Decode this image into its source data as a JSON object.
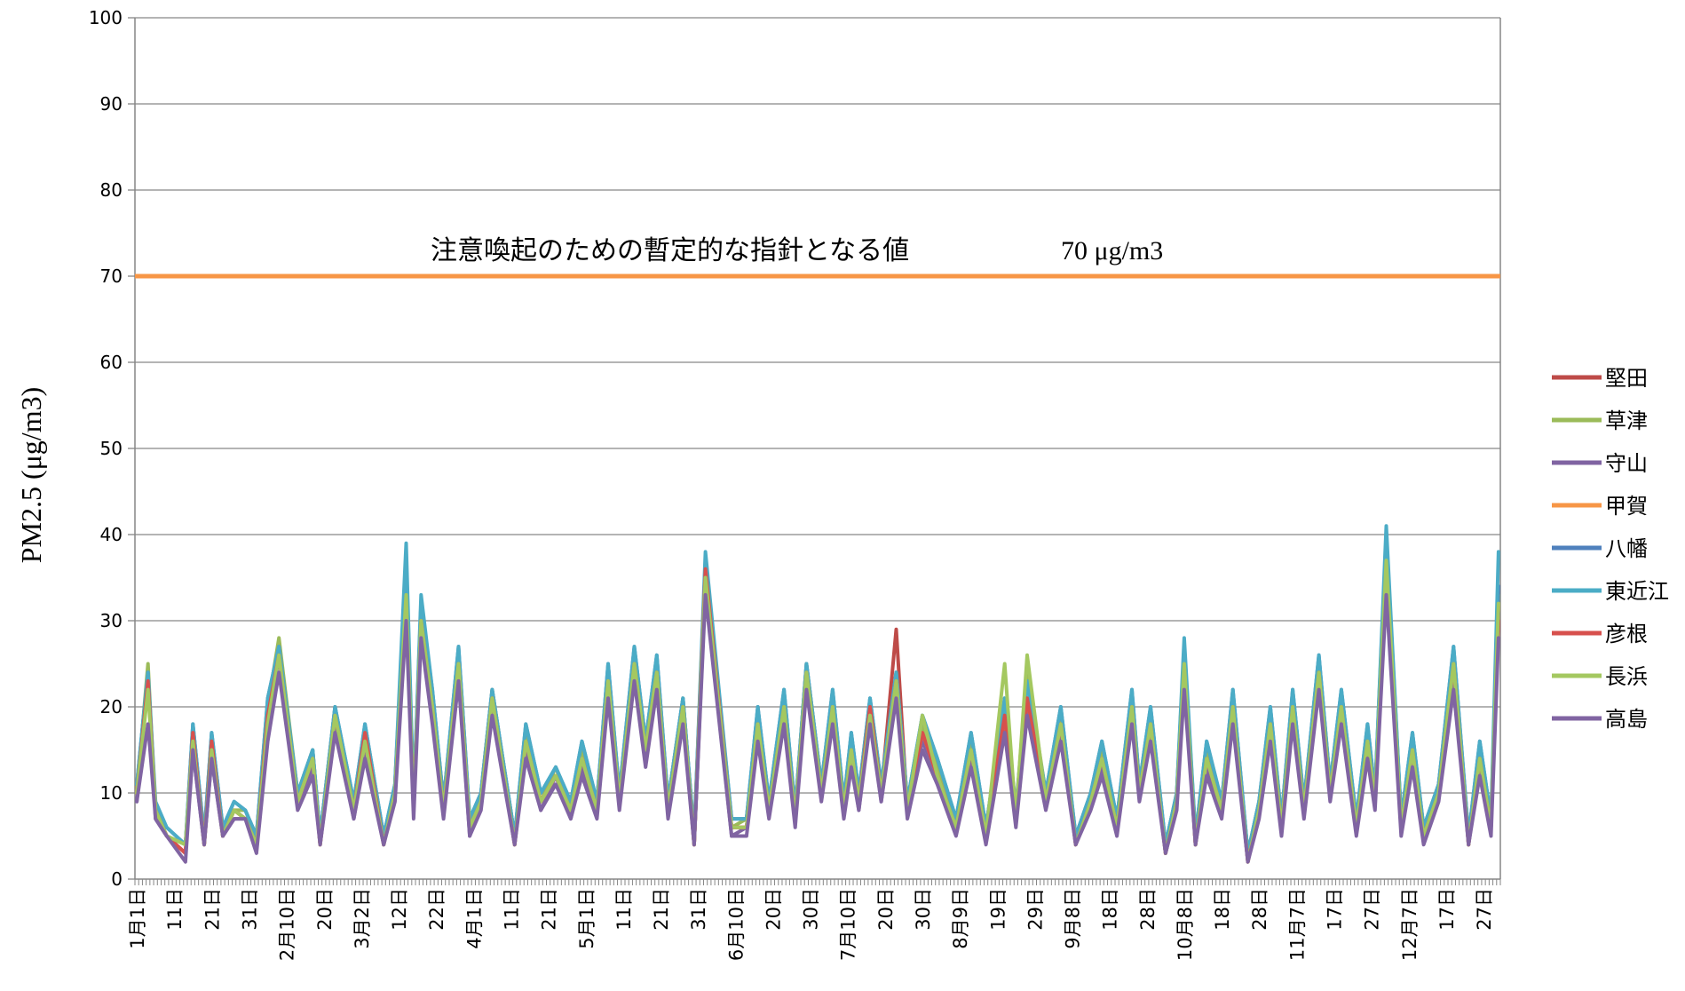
{
  "chart_data": {
    "type": "line",
    "ylabel": "PM2.5 (μg/m3)",
    "ylim": [
      0,
      100
    ],
    "yticks": [
      0,
      10,
      20,
      30,
      40,
      50,
      60,
      70,
      80,
      90,
      100
    ],
    "grid": true,
    "legend_position": "right",
    "x_tick_labels": [
      {
        "day": 0,
        "label": "1月1日"
      },
      {
        "day": 10,
        "label": "11日"
      },
      {
        "day": 20,
        "label": "21日"
      },
      {
        "day": 30,
        "label": "31日"
      },
      {
        "day": 40,
        "label": "2月10日"
      },
      {
        "day": 50,
        "label": "20日"
      },
      {
        "day": 60,
        "label": "3月2日"
      },
      {
        "day": 70,
        "label": "12日"
      },
      {
        "day": 80,
        "label": "22日"
      },
      {
        "day": 90,
        "label": "4月1日"
      },
      {
        "day": 100,
        "label": "11日"
      },
      {
        "day": 110,
        "label": "21日"
      },
      {
        "day": 120,
        "label": "5月1日"
      },
      {
        "day": 130,
        "label": "11日"
      },
      {
        "day": 140,
        "label": "21日"
      },
      {
        "day": 150,
        "label": "31日"
      },
      {
        "day": 160,
        "label": "6月10日"
      },
      {
        "day": 170,
        "label": "20日"
      },
      {
        "day": 180,
        "label": "30日"
      },
      {
        "day": 190,
        "label": "7月10日"
      },
      {
        "day": 200,
        "label": "20日"
      },
      {
        "day": 210,
        "label": "30日"
      },
      {
        "day": 220,
        "label": "8月9日"
      },
      {
        "day": 230,
        "label": "19日"
      },
      {
        "day": 240,
        "label": "29日"
      },
      {
        "day": 250,
        "label": "9月8日"
      },
      {
        "day": 260,
        "label": "18日"
      },
      {
        "day": 270,
        "label": "28日"
      },
      {
        "day": 280,
        "label": "10月8日"
      },
      {
        "day": 290,
        "label": "18日"
      },
      {
        "day": 300,
        "label": "28日"
      },
      {
        "day": 310,
        "label": "11月7日"
      },
      {
        "day": 320,
        "label": "17日"
      },
      {
        "day": 330,
        "label": "27日"
      },
      {
        "day": 340,
        "label": "12月7日"
      },
      {
        "day": 350,
        "label": "17日"
      },
      {
        "day": 360,
        "label": "27日"
      }
    ],
    "x_days": 365,
    "reference_line": {
      "value": 70,
      "label": "注意喚起のための暫定的な指針となる値",
      "unit_label": "70 μg/m3",
      "color": "#F79646"
    },
    "series_key_days": [
      0,
      3,
      5,
      8,
      13,
      15,
      18,
      20,
      23,
      26,
      29,
      32,
      35,
      38,
      43,
      47,
      49,
      53,
      58,
      61,
      66,
      69,
      72,
      74,
      76,
      79,
      82,
      86,
      89,
      92,
      95,
      101,
      104,
      108,
      112,
      116,
      119,
      123,
      126,
      129,
      133,
      136,
      139,
      142,
      146,
      149,
      152,
      159,
      163,
      166,
      169,
      173,
      176,
      179,
      183,
      186,
      189,
      191,
      193,
      196,
      199,
      203,
      206,
      210,
      214,
      219,
      223,
      227,
      232,
      235,
      238,
      243,
      247,
      251,
      255,
      258,
      262,
      266,
      268,
      271,
      275,
      278,
      280,
      283,
      286,
      290,
      293,
      297,
      300,
      303,
      306,
      309,
      312,
      316,
      319,
      322,
      326,
      329,
      331,
      334,
      338,
      341,
      344,
      348,
      352,
      356,
      359,
      362,
      364
    ],
    "series": [
      {
        "name": "堅田",
        "color": "#BE4B48",
        "values": [
          10,
          24,
          8,
          5,
          3,
          16,
          4,
          15,
          5,
          8,
          7,
          4,
          18,
          27,
          9,
          14,
          4,
          19,
          8,
          16,
          4,
          10,
          34,
          8,
          31,
          20,
          8,
          25,
          6,
          9,
          21,
          4,
          16,
          9,
          12,
          8,
          14,
          8,
          23,
          9,
          25,
          15,
          24,
          8,
          20,
          4,
          35,
          6,
          6,
          18,
          8,
          20,
          7,
          24,
          10,
          20,
          8,
          15,
          9,
          20,
          10,
          29,
          8,
          17,
          12,
          6,
          15,
          5,
          19,
          7,
          21,
          9,
          18,
          4,
          9,
          14,
          6,
          20,
          10,
          18,
          3,
          9,
          25,
          4,
          14,
          8,
          20,
          2,
          8,
          18,
          6,
          20,
          8,
          24,
          10,
          20,
          6,
          16,
          9,
          38,
          6,
          15,
          5,
          10,
          25,
          4,
          14,
          6,
          32,
          3,
          10,
          10,
          6
        ]
      },
      {
        "name": "草津",
        "color": "#9BBB59",
        "values": [
          10,
          25,
          8,
          5,
          4,
          17,
          4,
          16,
          5,
          8,
          8,
          5,
          20,
          28,
          10,
          15,
          5,
          20,
          8,
          17,
          4,
          11,
          35,
          9,
          32,
          21,
          9,
          26,
          6,
          10,
          22,
          5,
          17,
          9,
          13,
          8,
          15,
          9,
          24,
          10,
          26,
          16,
          25,
          9,
          21,
          5,
          36,
          6,
          7,
          19,
          9,
          21,
          8,
          25,
          11,
          21,
          9,
          16,
          9,
          20,
          10,
          24,
          9,
          18,
          13,
          7,
          16,
          6,
          20,
          8,
          24,
          10,
          19,
          5,
          10,
          15,
          7,
          21,
          11,
          19,
          4,
          10,
          26,
          5,
          15,
          9,
          21,
          3,
          9,
          19,
          7,
          21,
          9,
          25,
          11,
          21,
          7,
          17,
          10,
          39,
          7,
          16,
          6,
          11,
          26,
          5,
          15,
          7,
          33,
          4,
          11,
          11,
          7
        ]
      },
      {
        "name": "守山",
        "color": "#8064A2",
        "values": [
          9,
          23,
          7,
          5,
          3,
          15,
          4,
          14,
          5,
          7,
          7,
          4,
          17,
          26,
          9,
          13,
          4,
          18,
          7,
          15,
          4,
          10,
          33,
          8,
          30,
          19,
          8,
          24,
          5,
          9,
          20,
          4,
          15,
          8,
          12,
          7,
          13,
          8,
          22,
          9,
          24,
          14,
          23,
          8,
          19,
          4,
          34,
          5,
          6,
          17,
          8,
          19,
          7,
          23,
          10,
          19,
          8,
          14,
          8,
          19,
          9,
          22,
          8,
          16,
          12,
          6,
          14,
          5,
          18,
          7,
          20,
          9,
          17,
          4,
          9,
          13,
          6,
          19,
          10,
          17,
          3,
          9,
          24,
          4,
          13,
          8,
          19,
          2,
          8,
          17,
          6,
          19,
          8,
          23,
          10,
          19,
          6,
          15,
          9,
          36,
          6,
          14,
          5,
          10,
          24,
          4,
          13,
          6,
          31,
          3,
          10,
          10,
          6
        ]
      },
      {
        "name": "甲賀",
        "color": "#F79646",
        "values": [
          10,
          24,
          8,
          5,
          3,
          16,
          4,
          15,
          5,
          8,
          7,
          4,
          18,
          27,
          9,
          14,
          4,
          19,
          8,
          16,
          4,
          10,
          34,
          8,
          31,
          20,
          8,
          25,
          6,
          9,
          21,
          4,
          16,
          9,
          12,
          8,
          14,
          8,
          23,
          9,
          25,
          15,
          24,
          8,
          20,
          4,
          35,
          6,
          6,
          18,
          8,
          20,
          7,
          24,
          10,
          20,
          8,
          15,
          9,
          20,
          10,
          23,
          8,
          17,
          12,
          6,
          15,
          5,
          19,
          7,
          21,
          9,
          18,
          4,
          9,
          14,
          6,
          20,
          10,
          18,
          3,
          9,
          25,
          4,
          14,
          8,
          20,
          2,
          8,
          18,
          6,
          20,
          8,
          24,
          10,
          20,
          6,
          16,
          9,
          38,
          6,
          15,
          5,
          10,
          25,
          4,
          14,
          6,
          32,
          3,
          10,
          10,
          6
        ]
      },
      {
        "name": "八幡",
        "color": "#4F81BD",
        "values": [
          11,
          24,
          8,
          6,
          4,
          18,
          5,
          17,
          6,
          9,
          8,
          5,
          21,
          27,
          10,
          15,
          5,
          20,
          9,
          18,
          5,
          11,
          37,
          9,
          32,
          22,
          9,
          27,
          7,
          10,
          22,
          5,
          18,
          10,
          13,
          9,
          16,
          9,
          25,
          10,
          27,
          16,
          26,
          9,
          21,
          5,
          37,
          7,
          7,
          20,
          9,
          22,
          8,
          25,
          11,
          22,
          9,
          17,
          10,
          21,
          11,
          24,
          9,
          19,
          14,
          7,
          17,
          6,
          21,
          8,
          23,
          10,
          20,
          5,
          10,
          16,
          7,
          22,
          11,
          20,
          4,
          10,
          27,
          5,
          16,
          9,
          22,
          3,
          9,
          20,
          7,
          22,
          9,
          26,
          11,
          22,
          7,
          18,
          10,
          40,
          7,
          17,
          6,
          11,
          27,
          5,
          16,
          7,
          34,
          4,
          11,
          11,
          7
        ]
      },
      {
        "name": "東近江",
        "color": "#4BACC6",
        "values": [
          11,
          24,
          9,
          6,
          4,
          18,
          5,
          17,
          6,
          9,
          8,
          5,
          21,
          27,
          10,
          15,
          5,
          20,
          9,
          18,
          5,
          11,
          39,
          9,
          33,
          22,
          9,
          27,
          7,
          10,
          22,
          5,
          18,
          10,
          13,
          9,
          16,
          9,
          25,
          10,
          27,
          16,
          26,
          9,
          21,
          5,
          38,
          7,
          7,
          20,
          9,
          22,
          8,
          25,
          11,
          22,
          9,
          17,
          10,
          21,
          11,
          24,
          9,
          19,
          14,
          7,
          17,
          6,
          21,
          8,
          23,
          10,
          20,
          5,
          10,
          16,
          7,
          22,
          11,
          20,
          4,
          10,
          28,
          5,
          16,
          9,
          22,
          3,
          9,
          20,
          7,
          22,
          9,
          26,
          11,
          22,
          7,
          18,
          10,
          41,
          7,
          17,
          6,
          11,
          27,
          5,
          16,
          7,
          38,
          4,
          11,
          11,
          14
        ]
      },
      {
        "name": "彦根",
        "color": "#D7504D",
        "values": [
          10,
          23,
          8,
          5,
          3,
          17,
          4,
          16,
          5,
          8,
          7,
          4,
          19,
          26,
          9,
          14,
          4,
          19,
          8,
          17,
          4,
          10,
          32,
          8,
          30,
          20,
          8,
          25,
          6,
          9,
          21,
          4,
          16,
          9,
          12,
          8,
          14,
          8,
          23,
          9,
          25,
          15,
          24,
          8,
          20,
          4,
          36,
          6,
          6,
          18,
          8,
          20,
          7,
          24,
          10,
          20,
          8,
          15,
          9,
          20,
          10,
          23,
          8,
          17,
          12,
          6,
          15,
          5,
          19,
          7,
          21,
          9,
          18,
          4,
          9,
          14,
          6,
          20,
          10,
          18,
          3,
          9,
          24,
          4,
          14,
          8,
          20,
          2,
          8,
          18,
          6,
          20,
          8,
          24,
          10,
          20,
          6,
          16,
          9,
          35,
          6,
          15,
          5,
          10,
          25,
          4,
          14,
          6,
          30,
          3,
          10,
          10,
          6
        ]
      },
      {
        "name": "長浜",
        "color": "#A4C860",
        "values": [
          10,
          22,
          8,
          5,
          4,
          16,
          4,
          15,
          5,
          8,
          7,
          4,
          18,
          26,
          9,
          14,
          4,
          19,
          8,
          16,
          4,
          10,
          33,
          8,
          30,
          20,
          8,
          25,
          6,
          9,
          21,
          4,
          16,
          9,
          12,
          8,
          14,
          8,
          23,
          9,
          25,
          15,
          24,
          8,
          20,
          4,
          35,
          6,
          6,
          18,
          8,
          20,
          7,
          24,
          10,
          20,
          8,
          15,
          9,
          19,
          10,
          23,
          8,
          19,
          12,
          6,
          15,
          5,
          25,
          7,
          26,
          9,
          18,
          4,
          9,
          14,
          6,
          20,
          10,
          18,
          3,
          9,
          25,
          4,
          14,
          8,
          20,
          2,
          8,
          18,
          6,
          20,
          8,
          24,
          10,
          20,
          6,
          16,
          9,
          37,
          6,
          15,
          5,
          10,
          25,
          4,
          14,
          6,
          32,
          3,
          10,
          10,
          6
        ]
      },
      {
        "name": "高島",
        "color": "#8064A2",
        "values": [
          9,
          18,
          7,
          5,
          2,
          15,
          4,
          14,
          5,
          7,
          7,
          3,
          16,
          24,
          8,
          12,
          4,
          17,
          7,
          14,
          4,
          9,
          30,
          7,
          28,
          18,
          7,
          23,
          5,
          8,
          19,
          4,
          14,
          8,
          11,
          7,
          12,
          7,
          21,
          8,
          23,
          13,
          22,
          7,
          18,
          4,
          33,
          5,
          5,
          16,
          7,
          18,
          6,
          22,
          9,
          18,
          7,
          13,
          8,
          18,
          9,
          21,
          7,
          15,
          11,
          5,
          13,
          4,
          17,
          6,
          19,
          8,
          16,
          4,
          8,
          12,
          5,
          18,
          9,
          16,
          3,
          8,
          22,
          4,
          12,
          7,
          18,
          2,
          7,
          16,
          5,
          18,
          7,
          22,
          9,
          18,
          5,
          14,
          8,
          33,
          5,
          13,
          4,
          9,
          22,
          4,
          12,
          5,
          28,
          3,
          9,
          9,
          5
        ]
      }
    ]
  }
}
